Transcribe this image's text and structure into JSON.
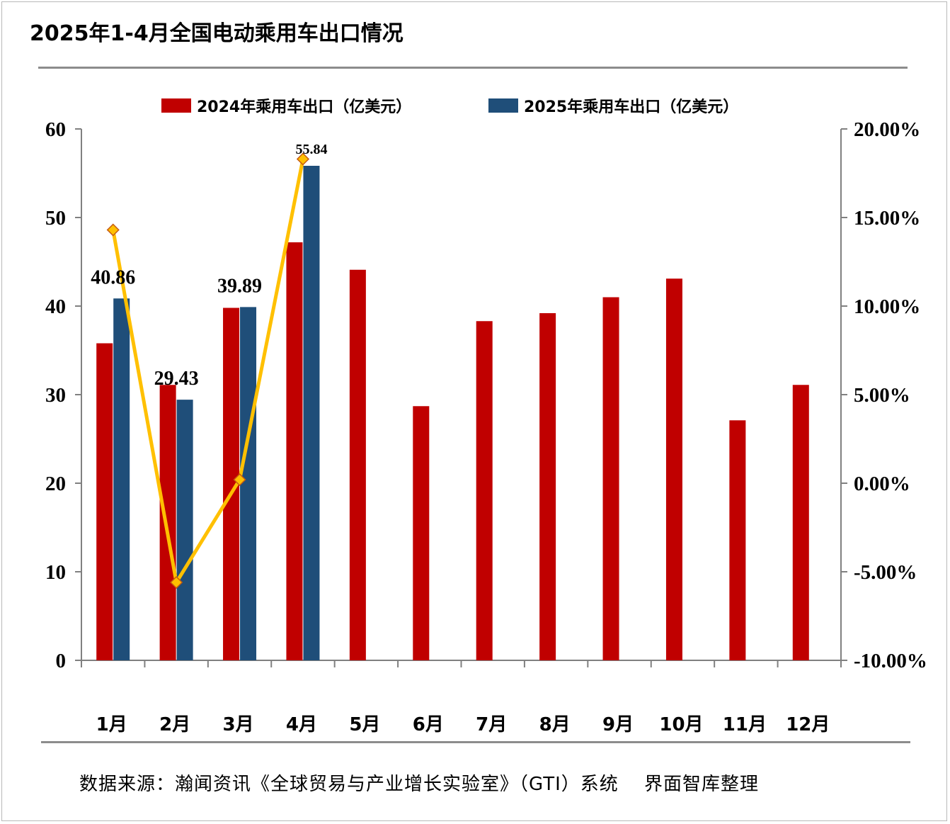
{
  "header": {
    "title": "2025年1-4月全国电动乘用车出口情况"
  },
  "footer": {
    "source": "数据来源：瀚闻资讯《全球贸易与产业增长实验室》（GTI）系统　 界面智库整理"
  },
  "colors": {
    "series_2024": "#c00000",
    "series_2025": "#1f4e79",
    "line": "#ffc000",
    "marker_border": "#c55a11"
  },
  "chart_data": {
    "type": "bar",
    "categories": [
      "1月",
      "2月",
      "3月",
      "4月",
      "5月",
      "6月",
      "7月",
      "8月",
      "9月",
      "10月",
      "11月",
      "12月"
    ],
    "series": [
      {
        "name": "2024年乘用车出口（亿美元）",
        "values": [
          35.8,
          31.1,
          39.8,
          47.2,
          44.1,
          28.7,
          38.3,
          39.2,
          41.0,
          43.1,
          27.1,
          31.1
        ]
      },
      {
        "name": "2025年乘用车出口（亿美元）",
        "values": [
          40.86,
          29.43,
          39.89,
          55.84,
          null,
          null,
          null,
          null,
          null,
          null,
          null,
          null
        ],
        "labels": [
          "40.86",
          "29.43",
          "39.89",
          "55.84"
        ]
      }
    ],
    "line_series": {
      "axis": "right",
      "type": "line",
      "values": [
        14.3,
        -5.6,
        0.2,
        18.3
      ]
    },
    "left_axis": {
      "ylim": [
        0,
        60
      ],
      "ticks": [
        "0",
        "10",
        "20",
        "30",
        "40",
        "50",
        "60"
      ]
    },
    "right_axis": {
      "ylim": [
        -10,
        20
      ],
      "ticks": [
        "-10.00%",
        "-5.00%",
        "0.00%",
        "5.00%",
        "10.00%",
        "15.00%",
        "20.00%"
      ]
    },
    "legend": "top",
    "grid": false
  }
}
